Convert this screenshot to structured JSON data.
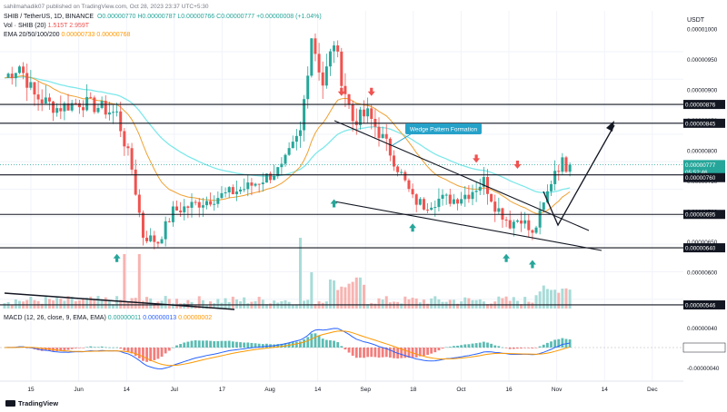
{
  "header": {
    "author": "sahilmahadik07 published on TradingView.com, Oct 28, 2023 23:37 UTC+5:30",
    "symbol_line": "SHIB / TetherUS, 1D, BINANCE",
    "ohlc": "O0.00000770  H0.00000787  L0.00000766  C0.00000777  +0.00000008 (+1.04%)",
    "vol_label": "Vol · SHIB (20)",
    "vol_values": "1.515T  2.959T",
    "ema_label": "EMA 20/50/100/200",
    "ema_values": "0.00000733  0.00000768",
    "currency": "USDT"
  },
  "macd": {
    "label": "MACD (12, 26, close, 9, EMA, EMA)",
    "v1": "0.00000011",
    "v2": "0.00000013",
    "v3": "0.00000002",
    "ticks": [
      "0.00000040",
      "0.00000000",
      "-0.00000040"
    ]
  },
  "footer": {
    "brand": "TradingView"
  },
  "annotation": {
    "wedge": "Wedge Pattern Formation"
  },
  "colors": {
    "up": "#26a69a",
    "down": "#ef5350",
    "ema20": "#f0a030",
    "ema50": "#7ee8ea",
    "macd": "#2962ff",
    "signal": "#ff9800",
    "label_bg": "#131722",
    "annot_bg": "#26a2c9"
  },
  "chart_data": {
    "type": "candlestick",
    "x_ticks": [
      "15",
      "Jun",
      "14",
      "Jul",
      "17",
      "Aug",
      "14",
      "Sep",
      "18",
      "Oct",
      "16",
      "Nov",
      "14",
      "Dec"
    ],
    "y_ticks": [
      "0.00001000",
      "0.00000950",
      "0.00000900",
      "0.00000850",
      "0.00000800",
      "0.00000750",
      "0.00000700",
      "0.00000650",
      "0.00000600",
      "0.00000550"
    ],
    "y_range": [
      5.4e-06,
      1.03e-05
    ],
    "price_labels": [
      "0.00000876",
      "0.00000845",
      "0.00000777",
      "05:52:46",
      "0.00000760",
      "0.00000695",
      "0.00000640",
      "0.00000546"
    ],
    "levels": [
      8.76e-06,
      8.45e-06,
      7.6e-06,
      6.95e-06,
      6.4e-06,
      5.46e-06
    ],
    "last_price": 7.77e-06
  }
}
